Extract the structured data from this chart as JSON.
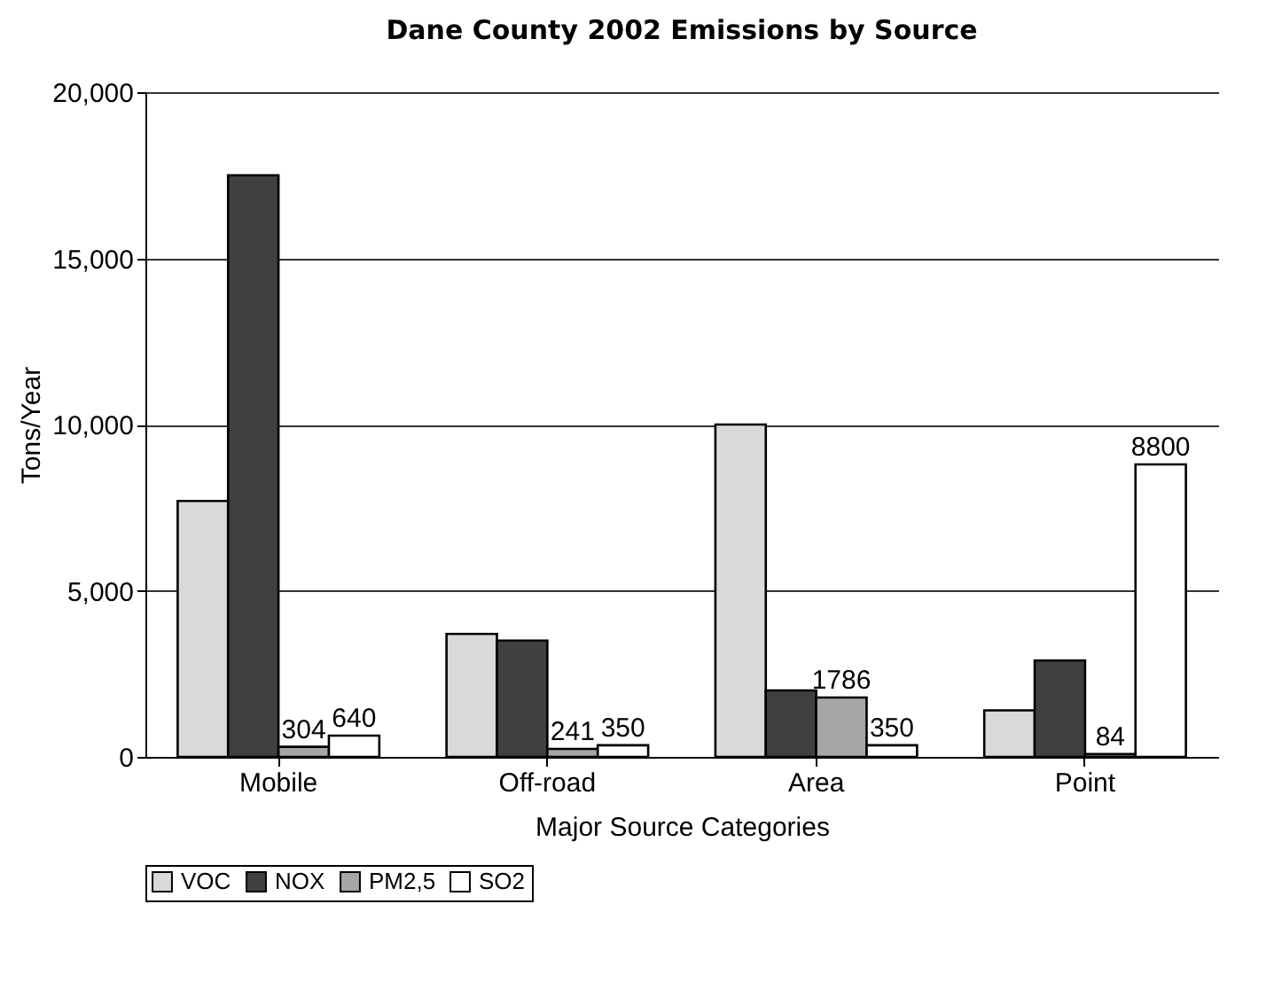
{
  "chart_data": {
    "type": "bar",
    "title": "Dane County 2002 Emissions by Source",
    "xlabel": "Major Source Categories",
    "ylabel": "Tons/Year",
    "categories": [
      "Mobile",
      "Off-road",
      "Area",
      "Point"
    ],
    "series": [
      {
        "name": "VOC",
        "color": "#d9d9d9",
        "values": [
          7700,
          3700,
          10000,
          1400
        ]
      },
      {
        "name": "NOX",
        "color": "#404040",
        "values": [
          17500,
          3500,
          2000,
          2900
        ]
      },
      {
        "name": "PM2,5",
        "color": "#a6a6a6",
        "values": [
          304,
          241,
          1786,
          84
        ],
        "value_labels": [
          "304",
          "241",
          "1786",
          "84"
        ]
      },
      {
        "name": "SO2",
        "color": "#ffffff",
        "values": [
          640,
          350,
          350,
          8800
        ],
        "value_labels": [
          "640",
          "350",
          "350",
          "8800"
        ]
      }
    ],
    "ylim": [
      0,
      20000
    ],
    "yticks": [
      0,
      {
        "value": 5000,
        "label": "5,000"
      },
      {
        "value": 10000,
        "label": "10,000"
      },
      {
        "value": 15000,
        "label": "15,000"
      },
      {
        "value": 20000,
        "label": "20,000"
      }
    ],
    "grid": "y",
    "legend": "bottom"
  }
}
